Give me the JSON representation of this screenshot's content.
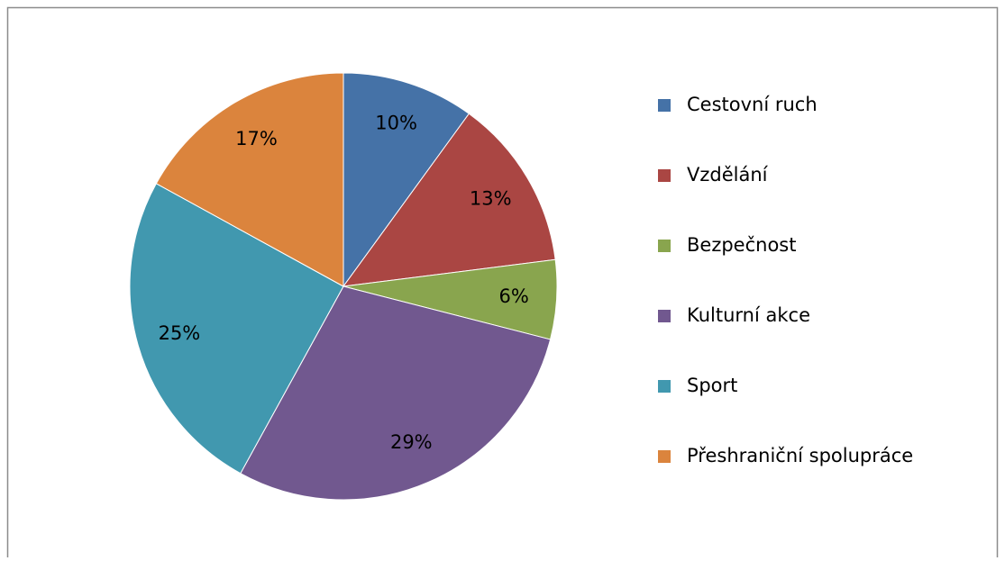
{
  "chart_data": {
    "type": "pie",
    "categories": [
      "Cestovní ruch",
      "Vzdělání",
      "Bezpečnost",
      "Kulturní akce",
      "Sport",
      "Přeshraniční spolupráce"
    ],
    "values": [
      10,
      13,
      6,
      29,
      25,
      17
    ],
    "value_labels": [
      "10%",
      "13%",
      "6%",
      "29%",
      "25%",
      "17%"
    ],
    "colors": [
      "#4572a7",
      "#aa4643",
      "#89a54e",
      "#71588f",
      "#4198af",
      "#db843d"
    ],
    "legend": "right"
  }
}
